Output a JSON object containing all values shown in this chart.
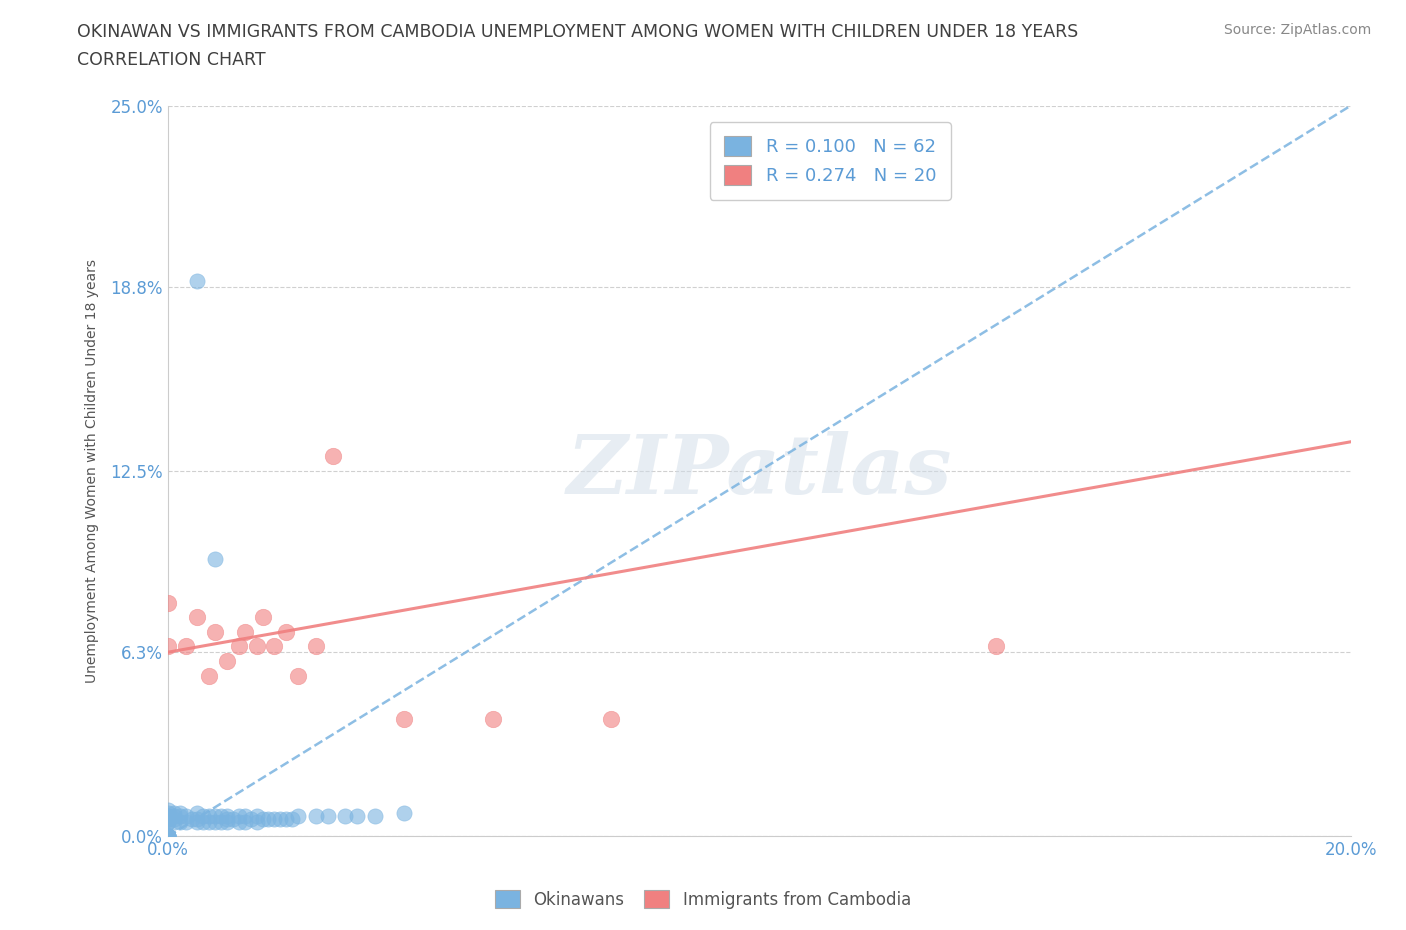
{
  "title_line1": "OKINAWAN VS IMMIGRANTS FROM CAMBODIA UNEMPLOYMENT AMONG WOMEN WITH CHILDREN UNDER 18 YEARS",
  "title_line2": "CORRELATION CHART",
  "source_text": "Source: ZipAtlas.com",
  "ylabel": "Unemployment Among Women with Children Under 18 years",
  "xmin": 0.0,
  "xmax": 0.2,
  "ymin": 0.0,
  "ymax": 0.25,
  "yticks": [
    0.0,
    0.063,
    0.125,
    0.188,
    0.25
  ],
  "ytick_labels": [
    "0.0%",
    "6.3%",
    "12.5%",
    "18.8%",
    "25.0%"
  ],
  "xtick_left_label": "0.0%",
  "xtick_right_label": "20.0%",
  "blue_color": "#7ab3e0",
  "pink_color": "#f08080",
  "title_color": "#404040",
  "axis_label_color": "#555555",
  "tick_label_color": "#5b9bd5",
  "watermark_text": "ZIPatlas",
  "legend_label1": "R = 0.100   N = 62",
  "legend_label2": "R = 0.274   N = 20",
  "bottom_legend1": "Okinawans",
  "bottom_legend2": "Immigrants from Cambodia",
  "blue_trend_x0": 0.0,
  "blue_trend_y0": 0.0,
  "blue_trend_x1": 0.2,
  "blue_trend_y1": 0.25,
  "pink_trend_x0": 0.0,
  "pink_trend_y0": 0.063,
  "pink_trend_x1": 0.2,
  "pink_trend_y1": 0.135,
  "okinawan_x": [
    0.0,
    0.0,
    0.0,
    0.0,
    0.0,
    0.0,
    0.0,
    0.0,
    0.0,
    0.0,
    0.0,
    0.0,
    0.0,
    0.0,
    0.0,
    0.001,
    0.001,
    0.001,
    0.001,
    0.002,
    0.002,
    0.002,
    0.003,
    0.003,
    0.004,
    0.005,
    0.005,
    0.005,
    0.006,
    0.006,
    0.007,
    0.007,
    0.008,
    0.008,
    0.009,
    0.009,
    0.01,
    0.01,
    0.01,
    0.011,
    0.012,
    0.012,
    0.013,
    0.013,
    0.014,
    0.015,
    0.015,
    0.016,
    0.017,
    0.018,
    0.019,
    0.02,
    0.021,
    0.022,
    0.025,
    0.027,
    0.03,
    0.032,
    0.035,
    0.04,
    0.005,
    0.008
  ],
  "okinawan_y": [
    0.0,
    0.0,
    0.0,
    0.0,
    0.0,
    0.0,
    0.0,
    0.005,
    0.005,
    0.006,
    0.006,
    0.007,
    0.007,
    0.008,
    0.009,
    0.005,
    0.006,
    0.007,
    0.008,
    0.005,
    0.007,
    0.008,
    0.005,
    0.007,
    0.006,
    0.005,
    0.006,
    0.008,
    0.005,
    0.007,
    0.005,
    0.007,
    0.005,
    0.007,
    0.005,
    0.007,
    0.005,
    0.006,
    0.007,
    0.006,
    0.005,
    0.007,
    0.005,
    0.007,
    0.006,
    0.005,
    0.007,
    0.006,
    0.006,
    0.006,
    0.006,
    0.006,
    0.006,
    0.007,
    0.007,
    0.007,
    0.007,
    0.007,
    0.007,
    0.008,
    0.19,
    0.095
  ],
  "cambodia_x": [
    0.0,
    0.0,
    0.003,
    0.005,
    0.007,
    0.008,
    0.01,
    0.012,
    0.013,
    0.015,
    0.016,
    0.018,
    0.02,
    0.022,
    0.025,
    0.028,
    0.04,
    0.055,
    0.075,
    0.14
  ],
  "cambodia_y": [
    0.065,
    0.08,
    0.065,
    0.075,
    0.055,
    0.07,
    0.06,
    0.065,
    0.07,
    0.065,
    0.075,
    0.065,
    0.07,
    0.055,
    0.065,
    0.13,
    0.04,
    0.04,
    0.04,
    0.065
  ]
}
